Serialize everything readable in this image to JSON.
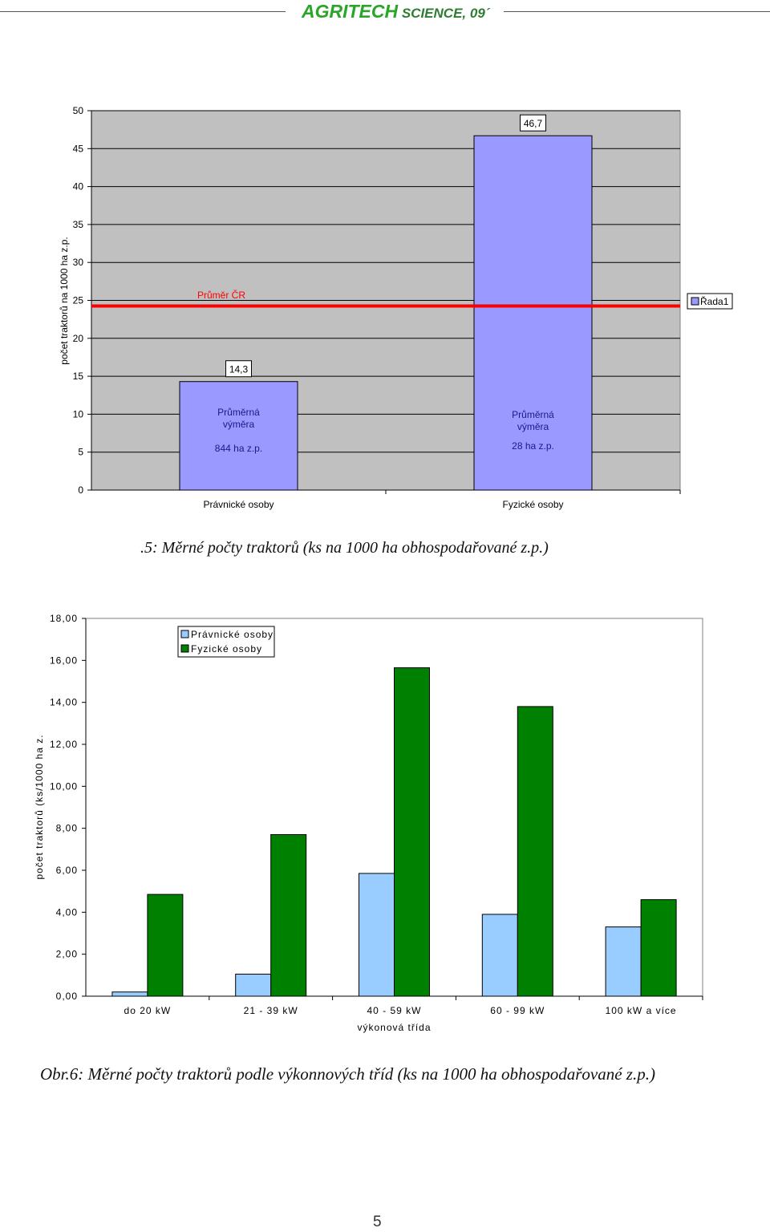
{
  "header": {
    "brand_agri": "AGRITECH",
    "brand_rest": " SCIENCE, 09´"
  },
  "figure1": {
    "caption": ".5: Měrné počty traktorů (ks na 1000 ha obhospodařované z.p.)"
  },
  "figure2": {
    "caption": "Obr.6: Měrné počty traktorů podle výkonnových tříd (ks na 1000 ha obhospodařované z.p.)"
  },
  "page_number": "5",
  "chart_data": [
    {
      "type": "bar",
      "ylabel": "počet traktorů na 1000 ha z.p.",
      "ylim": [
        0,
        50
      ],
      "yticks": [
        "0",
        "5",
        "10",
        "15",
        "20",
        "25",
        "30",
        "35",
        "40",
        "45",
        "50"
      ],
      "grid": true,
      "legend": [
        "Řada1"
      ],
      "legend_position": "right",
      "categories": [
        "Právnické osoby",
        "Fyzické osoby"
      ],
      "values": [
        14.3,
        46.7
      ],
      "data_labels": [
        "14,3",
        "46,7"
      ],
      "bar_notes": [
        {
          "line1": "Průměrná",
          "line2": "výměra",
          "line3": "844 ha z.p."
        },
        {
          "line1": "Průměrná",
          "line2": "výměra",
          "line3": "28 ha z.p."
        }
      ],
      "reference_line": {
        "label": "Průměr ČR",
        "value": 25,
        "color": "#ff0000"
      },
      "colors": {
        "bar": "#9999ff",
        "plot_bg": "#c0c0c0"
      }
    },
    {
      "type": "bar",
      "ylabel": "počet traktorů (ks/1000 ha z.",
      "xlabel": "výkonová třída",
      "ylim": [
        0,
        18
      ],
      "yticks": [
        "0,00",
        "2,00",
        "4,00",
        "6,00",
        "8,00",
        "10,00",
        "12,00",
        "14,00",
        "16,00",
        "18,00"
      ],
      "grid": false,
      "legend_position": "top-left",
      "categories": [
        "do 20 kW",
        "21 - 39 kW",
        "40 - 59 kW",
        "60 - 99 kW",
        "100 kW a více"
      ],
      "series": [
        {
          "name": "Právnické osoby",
          "values": [
            0.2,
            1.05,
            5.85,
            3.9,
            3.3
          ],
          "color": "#99ccff"
        },
        {
          "name": "Fyzické osoby",
          "values": [
            4.85,
            7.7,
            15.65,
            13.8,
            4.6
          ],
          "color": "#008000"
        }
      ]
    }
  ]
}
